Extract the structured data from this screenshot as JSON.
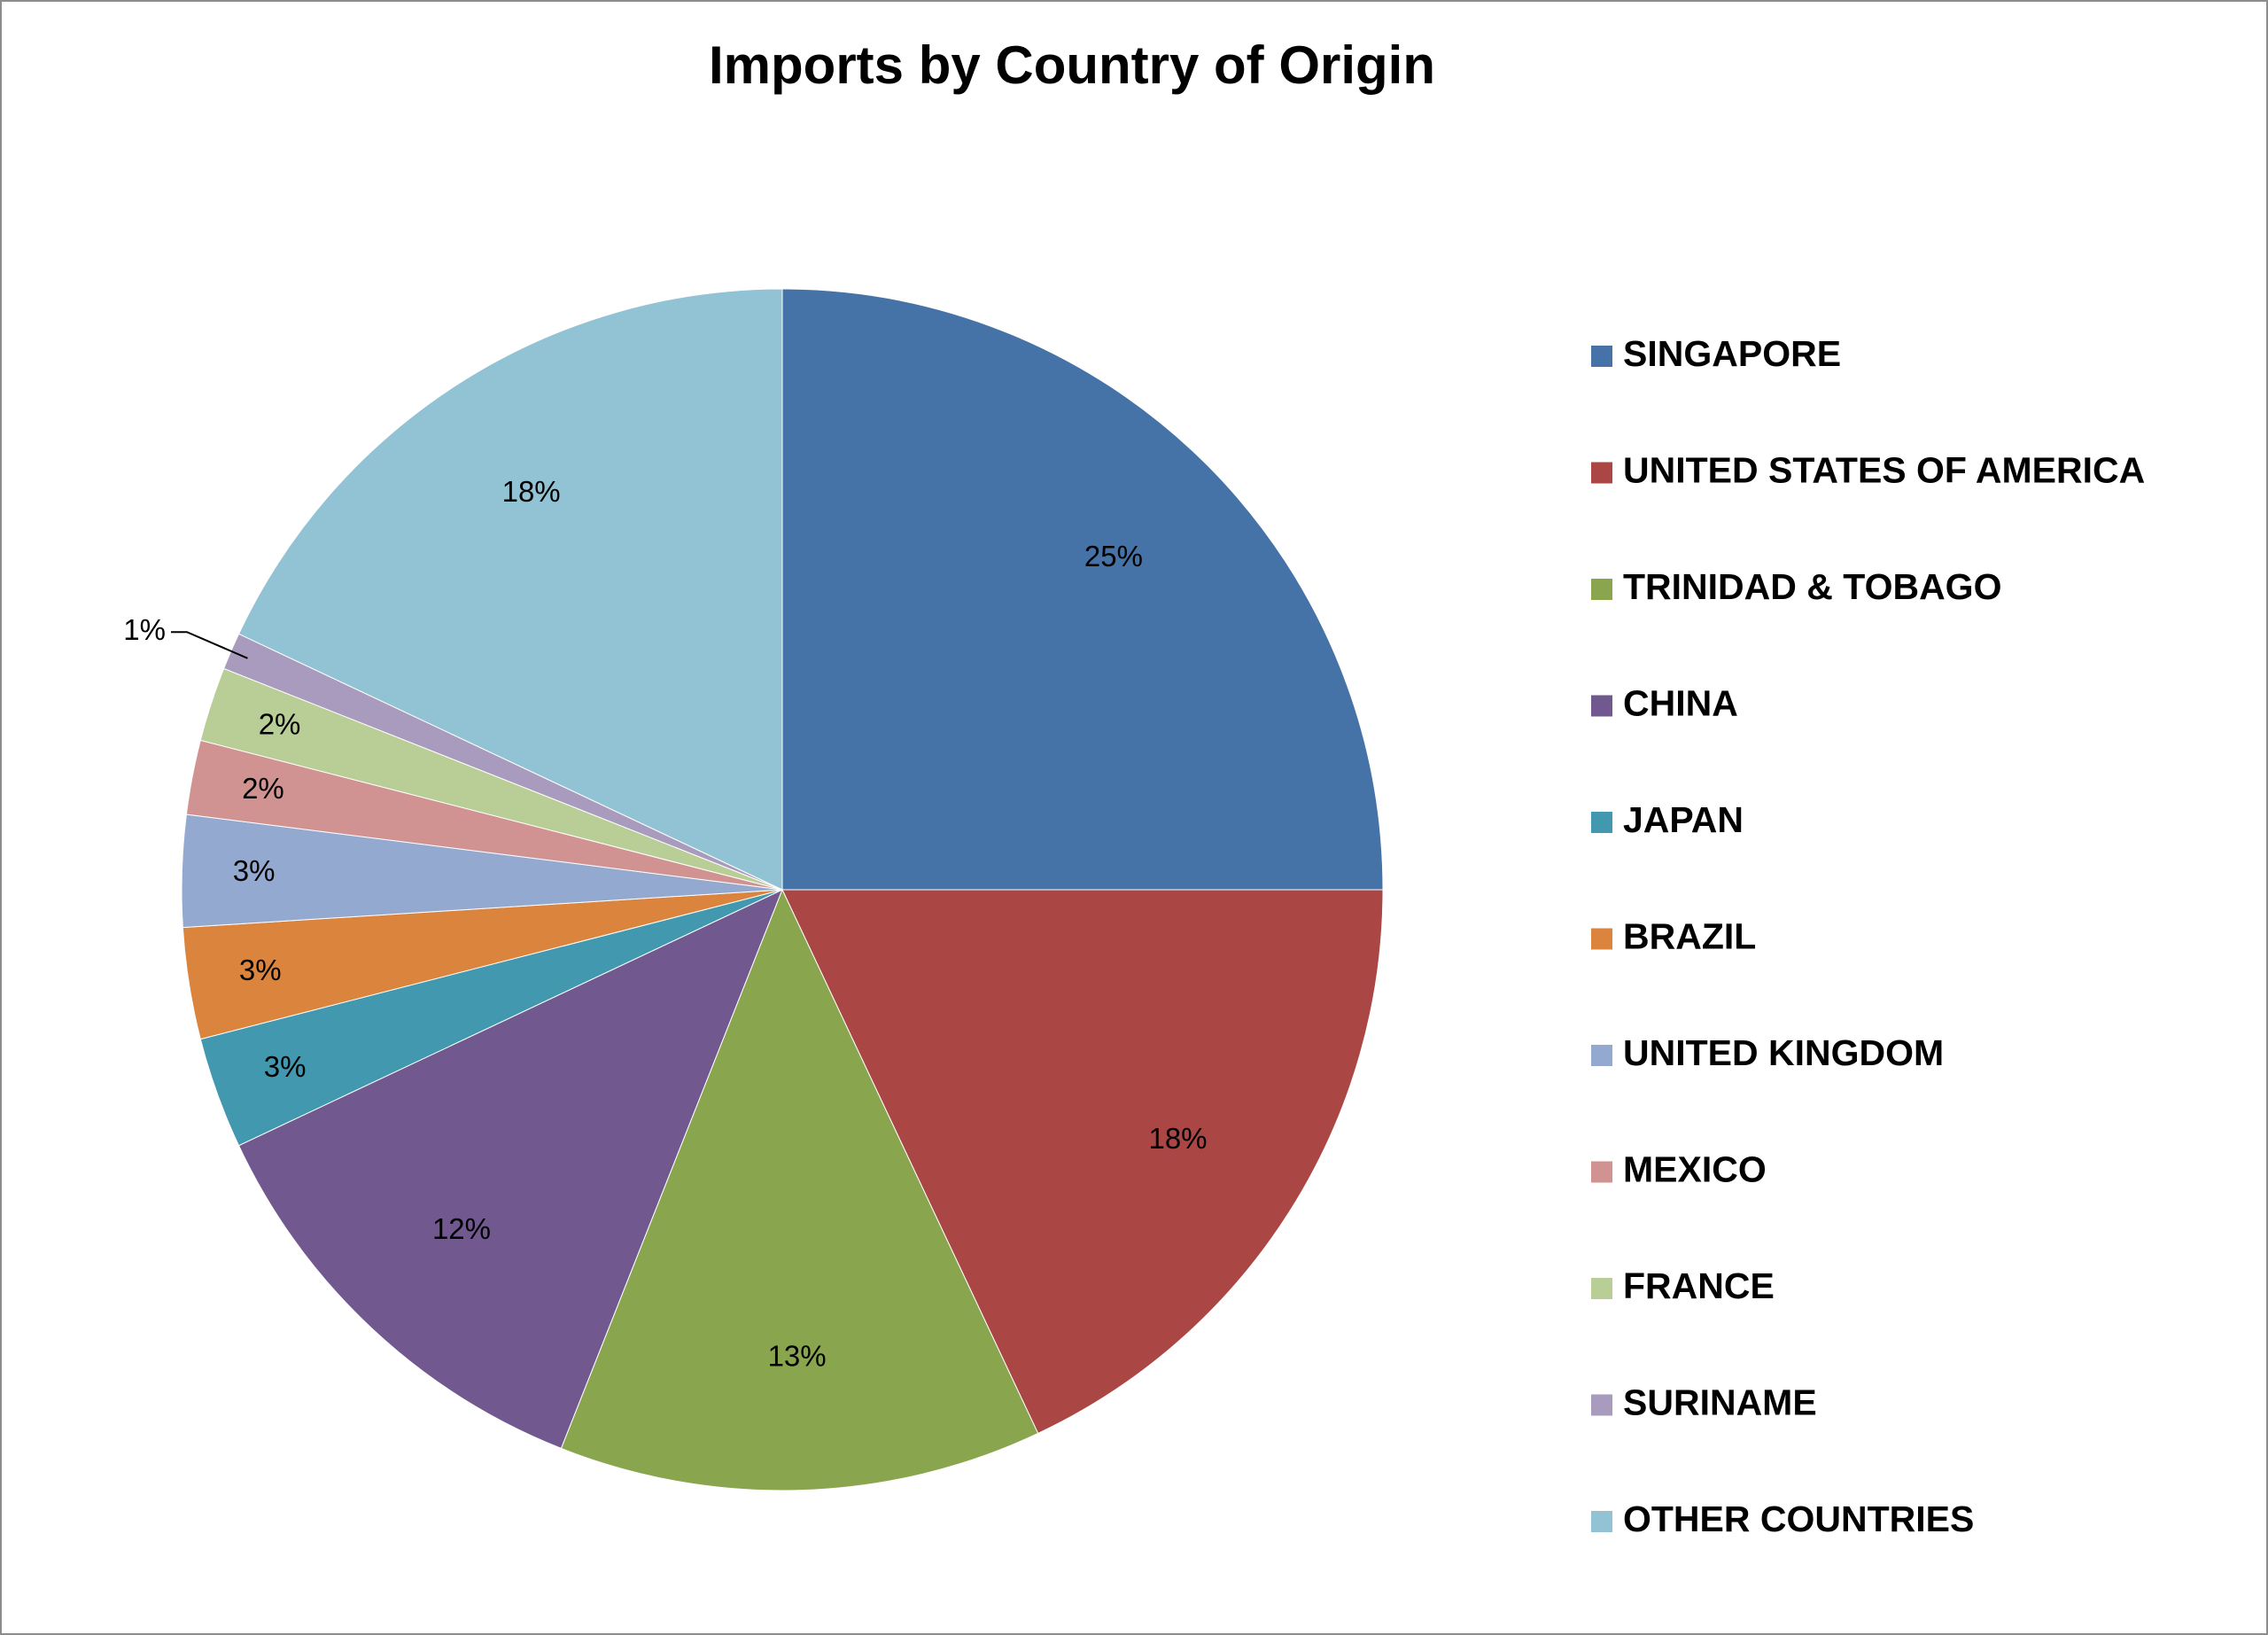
{
  "chart_data": {
    "type": "pie",
    "title": "Imports by Country of Origin",
    "categories": [
      "SINGAPORE",
      "UNITED STATES OF AMERICA",
      "TRINIDAD & TOBAGO",
      "CHINA",
      "JAPAN",
      "BRAZIL",
      "UNITED KINGDOM",
      "MEXICO",
      "FRANCE",
      "SURINAME",
      "OTHER COUNTRIES"
    ],
    "values": [
      25,
      18,
      13,
      12,
      3,
      3,
      3,
      2,
      2,
      1,
      18
    ],
    "value_labels": [
      "25%",
      "18%",
      "13%",
      "12%",
      "3%",
      "3%",
      "3%",
      "2%",
      "2%",
      "1%",
      "18%"
    ],
    "colors": [
      "#4572A7",
      "#AA4643",
      "#89A54E",
      "#71588F",
      "#4198AF",
      "#DB843D",
      "#93A9CF",
      "#D19392",
      "#B9CD96",
      "#A99BBD",
      "#92C3D4"
    ],
    "legend": "right"
  }
}
